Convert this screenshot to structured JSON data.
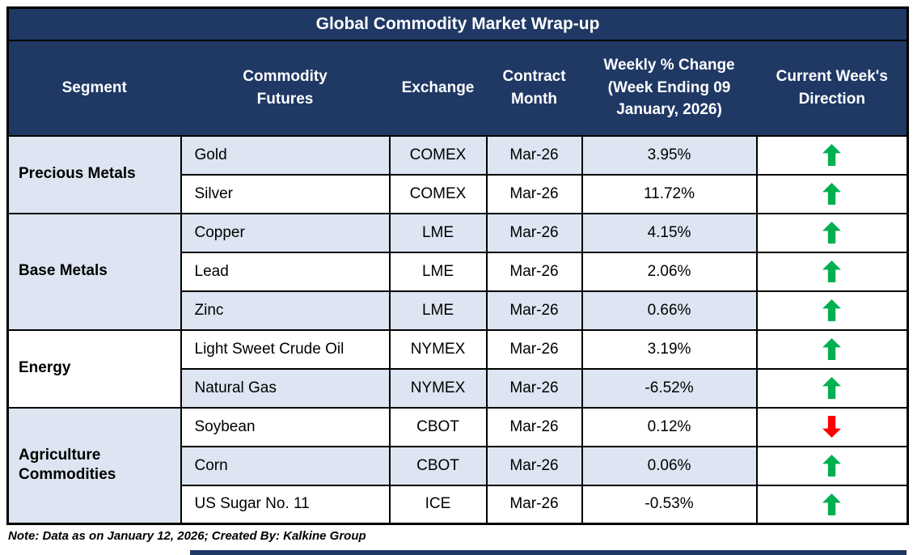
{
  "chart_data": {
    "type": "table",
    "title": "Global Commodity Market Wrap-up",
    "columns": [
      "Segment",
      "Commodity\nFutures",
      "Exchange",
      "Contract\nMonth",
      "Weekly % Change\n(Week Ending 09\nJanuary, 2026)",
      "Current Week's\nDirection"
    ],
    "segments": [
      {
        "name": "Precious Metals",
        "shaded": true,
        "rows": [
          {
            "commodity": "Gold",
            "exchange": "COMEX",
            "contract_month": "Mar-26",
            "weekly_change": "3.95%",
            "direction": "up"
          },
          {
            "commodity": "Silver",
            "exchange": "COMEX",
            "contract_month": "Mar-26",
            "weekly_change": "11.72%",
            "direction": "up"
          }
        ]
      },
      {
        "name": "Base Metals",
        "shaded": true,
        "rows": [
          {
            "commodity": "Copper",
            "exchange": "LME",
            "contract_month": "Mar-26",
            "weekly_change": "4.15%",
            "direction": "up"
          },
          {
            "commodity": "Lead",
            "exchange": "LME",
            "contract_month": "Mar-26",
            "weekly_change": "2.06%",
            "direction": "up"
          },
          {
            "commodity": "Zinc",
            "exchange": "LME",
            "contract_month": "Mar-26",
            "weekly_change": "0.66%",
            "direction": "up"
          }
        ]
      },
      {
        "name": "Energy",
        "shaded": false,
        "rows": [
          {
            "commodity": "Light Sweet Crude Oil",
            "exchange": "NYMEX",
            "contract_month": "Mar-26",
            "weekly_change": "3.19%",
            "direction": "up"
          },
          {
            "commodity": "Natural Gas",
            "exchange": "NYMEX",
            "contract_month": "Mar-26",
            "weekly_change": "-6.52%",
            "direction": "up"
          }
        ]
      },
      {
        "name": "Agriculture Commodities",
        "shaded": true,
        "rows": [
          {
            "commodity": "Soybean",
            "exchange": "CBOT",
            "contract_month": "Mar-26",
            "weekly_change": "0.12%",
            "direction": "down"
          },
          {
            "commodity": "Corn",
            "exchange": "CBOT",
            "contract_month": "Mar-26",
            "weekly_change": "0.06%",
            "direction": "up"
          },
          {
            "commodity": "US Sugar No. 11",
            "exchange": "ICE",
            "contract_month": "Mar-26",
            "weekly_change": "-0.53%",
            "direction": "up"
          }
        ]
      }
    ],
    "note": "Note: Data as on January 12, 2026; Created By: Kalkine Group"
  },
  "colors": {
    "header_bg": "#1F3864",
    "header_text": "#FFFFFF",
    "row_shaded": "#DCE5F1",
    "row_white": "#FFFFFF",
    "up_arrow": "#00B050",
    "down_arrow": "#FF0000",
    "border": "#000000"
  },
  "icons": {
    "up": "up-arrow-icon",
    "down": "down-arrow-icon"
  }
}
